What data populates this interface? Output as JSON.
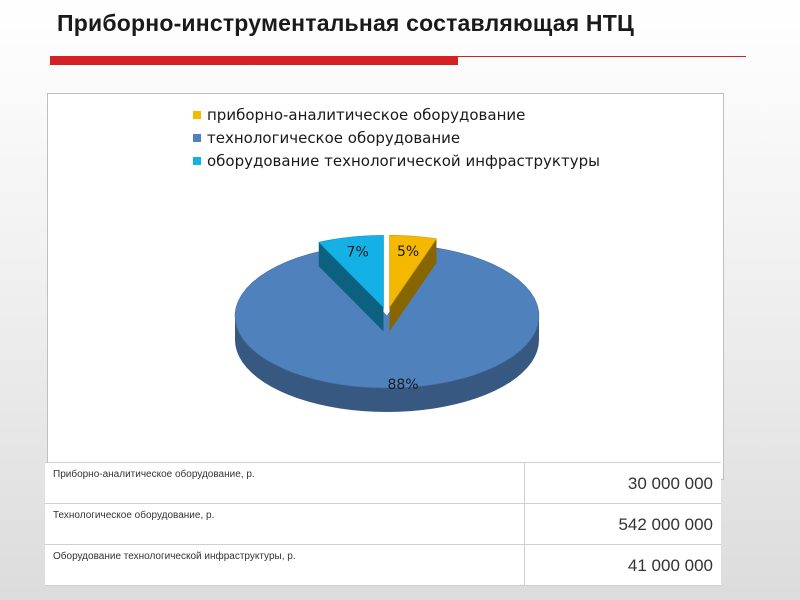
{
  "slide": {
    "title": "Приборно-инструментальная составляющая НТЦ",
    "accent_color": "#d42126"
  },
  "chart_data": {
    "type": "pie",
    "categories": [
      "приборно-аналитическое оборудование",
      "технологическое оборудование",
      "оборудование технологической инфраструктуры"
    ],
    "values": [
      5,
      88,
      7
    ],
    "labels": [
      "5%",
      "88%",
      "7%"
    ],
    "colors": [
      "#f5b800",
      "#4f81bd",
      "#14b1e7"
    ],
    "legend_position": "top",
    "three_d": true
  },
  "table": {
    "rows": [
      {
        "label": "Приборно-аналитическое оборудование, р.",
        "value": "30 000 000"
      },
      {
        "label": "Технологическое оборудование, р.",
        "value": "542 000 000"
      },
      {
        "label": "Оборудование технологической инфраструктуры, р.",
        "value": "41 000 000"
      }
    ]
  }
}
